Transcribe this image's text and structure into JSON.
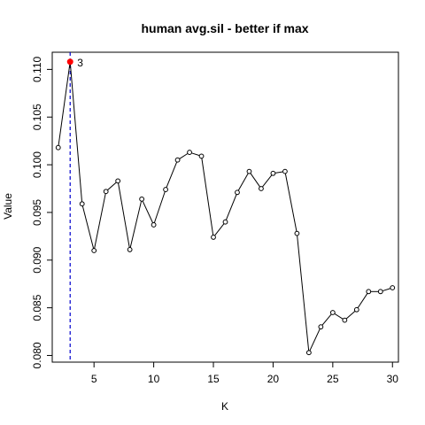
{
  "chart_data": {
    "type": "line",
    "title": "human avg.sil - better if  max",
    "xlabel": "K",
    "ylabel": "Value",
    "xlim": [
      1.5,
      30.5
    ],
    "ylim": [
      0.0793,
      0.1118
    ],
    "x_ticks": [
      5,
      10,
      15,
      20,
      25,
      30
    ],
    "y_ticks": [
      0.08,
      0.085,
      0.09,
      0.095,
      0.1,
      0.105,
      0.11
    ],
    "x_tick_labels": [
      "5",
      "10",
      "15",
      "20",
      "25",
      "30"
    ],
    "y_tick_labels": [
      "0.080",
      "0.085",
      "0.090",
      "0.095",
      "0.100",
      "0.105",
      "0.110"
    ],
    "grid": false,
    "series": [
      {
        "x": [
          2,
          3,
          4,
          5,
          6,
          7,
          8,
          9,
          10,
          11,
          12,
          13,
          14,
          15,
          16,
          17,
          18,
          19,
          20,
          21,
          22,
          23,
          24,
          25,
          26,
          27,
          28,
          29,
          30
        ],
        "values": [
          0.1018,
          0.1108,
          0.0959,
          0.091,
          0.0972,
          0.0983,
          0.0911,
          0.0964,
          0.0937,
          0.0974,
          0.1005,
          0.1013,
          0.1009,
          0.0924,
          0.094,
          0.0971,
          0.0993,
          0.0975,
          0.0991,
          0.0993,
          0.0928,
          0.0803,
          0.083,
          0.0845,
          0.0837,
          0.0848,
          0.0867,
          0.0867,
          0.0871
        ],
        "color": "#000000"
      }
    ],
    "optimum": {
      "x": 3,
      "y": 0.1108,
      "label": "3",
      "color": "#ff0000"
    },
    "reference_line": {
      "x": 3,
      "color": "#0000cd",
      "style": "dashed"
    }
  }
}
